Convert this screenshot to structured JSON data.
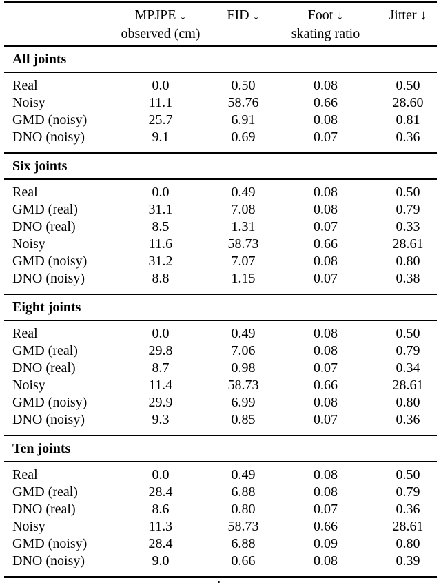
{
  "table": {
    "columns": [
      {
        "line1": "MPJPE ↓",
        "line2": "observed (cm)"
      },
      {
        "line1": "FID ↓",
        "line2": ""
      },
      {
        "line1": "Foot ↓",
        "line2": "skating ratio"
      },
      {
        "line1": "Jitter ↓",
        "line2": ""
      }
    ],
    "sections": [
      {
        "title": "All joints",
        "rows": [
          {
            "label": "Real",
            "values": [
              "0.0",
              "0.50",
              "0.08",
              "0.50"
            ]
          },
          {
            "label": "Noisy",
            "values": [
              "11.1",
              "58.76",
              "0.66",
              "28.60"
            ]
          },
          {
            "label": "GMD (noisy)",
            "values": [
              "25.7",
              "6.91",
              "0.08",
              "0.81"
            ]
          },
          {
            "label": "DNO (noisy)",
            "values": [
              "9.1",
              "0.69",
              "0.07",
              "0.36"
            ]
          }
        ]
      },
      {
        "title": "Six joints",
        "rows": [
          {
            "label": "Real",
            "values": [
              "0.0",
              "0.49",
              "0.08",
              "0.50"
            ]
          },
          {
            "label": "GMD (real)",
            "values": [
              "31.1",
              "7.08",
              "0.08",
              "0.79"
            ]
          },
          {
            "label": "DNO (real)",
            "values": [
              "8.5",
              "1.31",
              "0.07",
              "0.33"
            ]
          },
          {
            "label": "Noisy",
            "values": [
              "11.6",
              "58.73",
              "0.66",
              "28.61"
            ]
          },
          {
            "label": "GMD (noisy)",
            "values": [
              "31.2",
              "7.07",
              "0.08",
              "0.80"
            ]
          },
          {
            "label": "DNO (noisy)",
            "values": [
              "8.8",
              "1.15",
              "0.07",
              "0.38"
            ]
          }
        ]
      },
      {
        "title": "Eight joints",
        "rows": [
          {
            "label": "Real",
            "values": [
              "0.0",
              "0.49",
              "0.08",
              "0.50"
            ]
          },
          {
            "label": "GMD (real)",
            "values": [
              "29.8",
              "7.06",
              "0.08",
              "0.79"
            ]
          },
          {
            "label": "DNO (real)",
            "values": [
              "8.7",
              "0.98",
              "0.07",
              "0.34"
            ]
          },
          {
            "label": "Noisy",
            "values": [
              "11.4",
              "58.73",
              "0.66",
              "28.61"
            ]
          },
          {
            "label": "GMD (noisy)",
            "values": [
              "29.9",
              "6.99",
              "0.08",
              "0.80"
            ]
          },
          {
            "label": "DNO (noisy)",
            "values": [
              "9.3",
              "0.85",
              "0.07",
              "0.36"
            ]
          }
        ]
      },
      {
        "title": "Ten joints",
        "rows": [
          {
            "label": "Real",
            "values": [
              "0.0",
              "0.49",
              "0.08",
              "0.50"
            ]
          },
          {
            "label": "GMD (real)",
            "values": [
              "28.4",
              "6.88",
              "0.08",
              "0.79"
            ]
          },
          {
            "label": "DNO (real)",
            "values": [
              "8.6",
              "0.80",
              "0.07",
              "0.36"
            ]
          },
          {
            "label": "Noisy",
            "values": [
              "11.3",
              "58.73",
              "0.66",
              "28.61"
            ]
          },
          {
            "label": "GMD (noisy)",
            "values": [
              "28.4",
              "6.88",
              "0.09",
              "0.80"
            ]
          },
          {
            "label": "DNO (noisy)",
            "values": [
              "9.0",
              "0.66",
              "0.08",
              "0.39"
            ]
          }
        ]
      }
    ]
  },
  "caption_fragment": "."
}
